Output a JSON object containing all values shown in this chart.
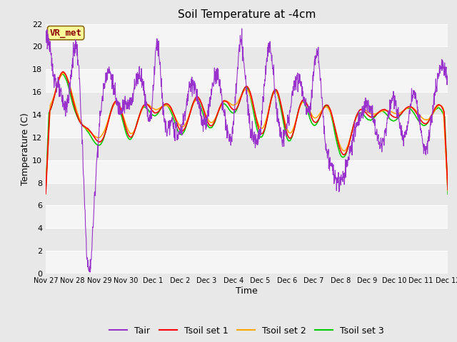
{
  "title": "Soil Temperature at -4cm",
  "xlabel": "Time",
  "ylabel": "Temperature (C)",
  "ylim": [
    0,
    22
  ],
  "yticks": [
    0,
    2,
    4,
    6,
    8,
    10,
    12,
    14,
    16,
    18,
    20,
    22
  ],
  "x_tick_labels": [
    "Nov 27",
    "Nov 28",
    "Nov 29",
    "Nov 30",
    "Dec 1",
    "Dec 2",
    "Dec 3",
    "Dec 4",
    "Dec 5",
    "Dec 6",
    "Dec 7",
    "Dec 8",
    "Dec 9",
    "Dec 10",
    "Dec 11",
    "Dec 12"
  ],
  "annotation_text": "VR_met",
  "annotation_color": "#8B0000",
  "annotation_bg": "#FFFF99",
  "annotation_border": "#8B6914",
  "line_colors": {
    "Tair": "#9932CC",
    "Tsoil_set1": "#FF0000",
    "Tsoil_set2": "#FFA500",
    "Tsoil_set3": "#00CC00"
  },
  "legend_labels": [
    "Tair",
    "Tsoil set 1",
    "Tsoil set 2",
    "Tsoil set 3"
  ],
  "bg_color": "#E8E8E8",
  "plot_bg_light": "#F5F5F5",
  "plot_bg_dark": "#E8E8E8",
  "grid_line_color": "#FFFFFF",
  "title_fontsize": 11,
  "axis_label_fontsize": 9,
  "tick_fontsize": 8,
  "legend_fontsize": 9
}
